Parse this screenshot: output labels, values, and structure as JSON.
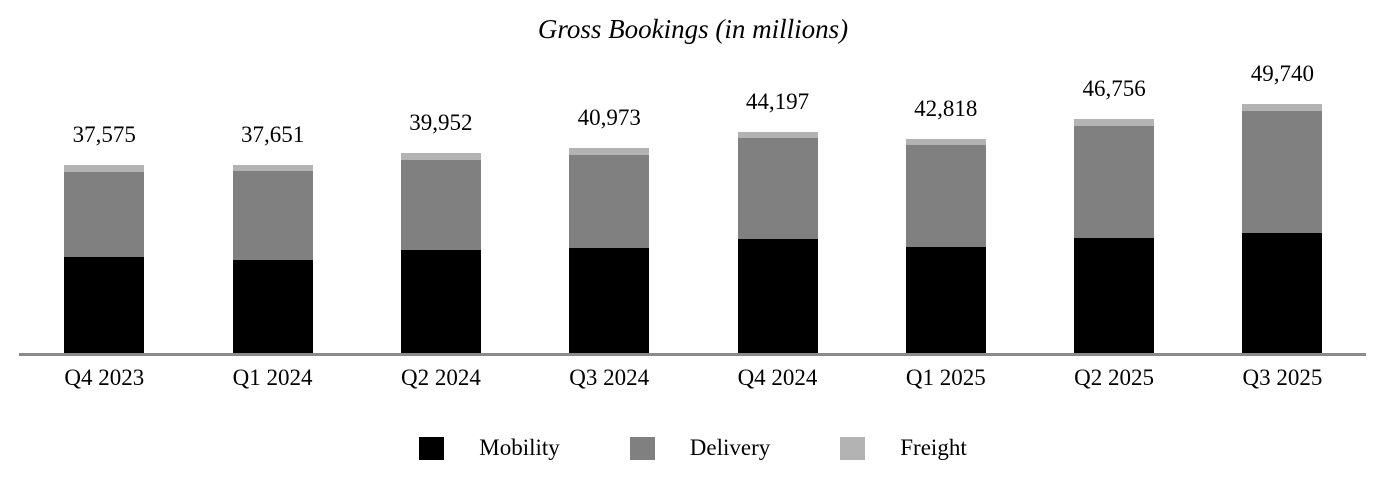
{
  "chart_data": {
    "type": "bar",
    "stacked": true,
    "title": "Gross Bookings (in millions)",
    "categories": [
      "Q4 2023",
      "Q1 2024",
      "Q2 2024",
      "Q3 2024",
      "Q4 2024",
      "Q1 2025",
      "Q2 2025",
      "Q3 2025"
    ],
    "totals": [
      37575,
      37651,
      39952,
      40973,
      44197,
      42818,
      46756,
      49740
    ],
    "total_labels": [
      "37,575",
      "37,651",
      "39,952",
      "40,973",
      "44,197",
      "42,818",
      "46,756",
      "49,740"
    ],
    "series": [
      {
        "name": "Mobility",
        "color": "#000000",
        "values": [
          19285,
          18670,
          20554,
          21000,
          22798,
          21182,
          23033,
          23999
        ]
      },
      {
        "name": "Delivery",
        "color": "#808080",
        "values": [
          17011,
          17699,
          18126,
          18663,
          20128,
          20377,
          22433,
          24452
        ]
      },
      {
        "name": "Freight",
        "color": "#b3b3b3",
        "values": [
          1279,
          1282,
          1272,
          1310,
          1271,
          1259,
          1290,
          1289
        ]
      }
    ],
    "series_values_estimated_from_pixels": true,
    "ylim": [
      0,
      52000
    ],
    "grid": false,
    "legend_position": "bottom",
    "axis_line_color": "#8a8a8a",
    "background_color": "#ffffff",
    "text_color": "#000000"
  }
}
